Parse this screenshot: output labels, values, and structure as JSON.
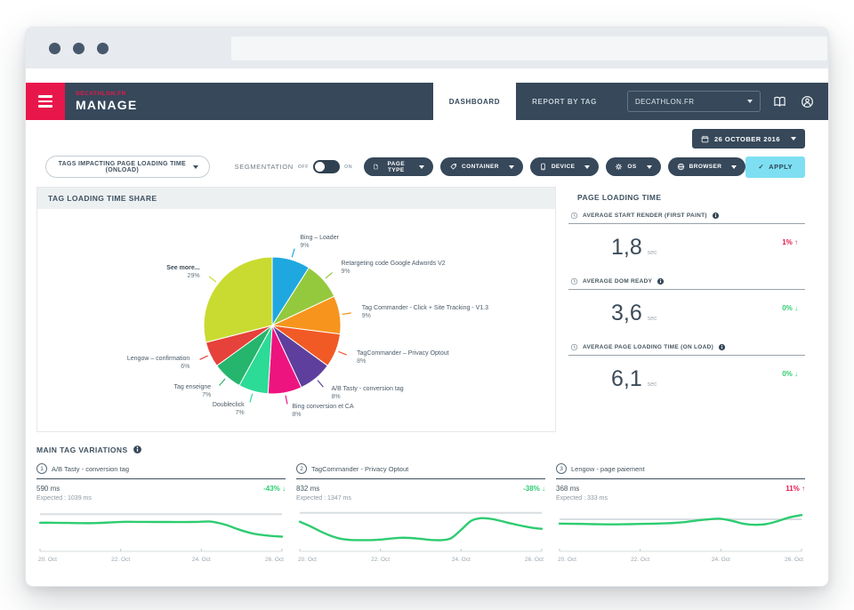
{
  "colors": {
    "navy": "#36485a",
    "accent_red": "#e8174b",
    "green": "#2ecc71",
    "apply_cyan": "#7fdff2"
  },
  "header": {
    "account": "DECATHLON.FR",
    "app_name": "MANAGE",
    "tabs": [
      {
        "label": "DASHBOARD"
      },
      {
        "label": "REPORT BY TAG"
      }
    ],
    "site_selector": "DECATHLON.FR"
  },
  "date_button": {
    "label": "26 OCTOBER 2016"
  },
  "filters": {
    "report_dropdown": "TAGS IMPACTING PAGE LOADING TIME (ONLOAD)",
    "segmentation_label": "SEGMENTATION",
    "toggle_off": "OFF",
    "toggle_on": "ON",
    "pills": [
      "PAGE TYPE",
      "CONTAINER",
      "DEVICE",
      "OS",
      "BROWSER"
    ],
    "apply_icon": "✓",
    "apply_label": "APPLY"
  },
  "pie_panel": {
    "title": "TAG LOADING TIME SHARE"
  },
  "metrics_panel": {
    "title": "PAGE LOADING TIME",
    "items": [
      {
        "label": "AVERAGE START RENDER (FIRST PAINT)",
        "value": "1,8",
        "unit": "sec",
        "delta": "1%",
        "arrow": "↑",
        "color": "#e8174b"
      },
      {
        "label": "AVERAGE DOM READY",
        "value": "3,6",
        "unit": "sec",
        "delta": "0%",
        "arrow": "↓",
        "color": "#2ecc71"
      },
      {
        "label": "AVERAGE PAGE LOADING TIME (ON LOAD)",
        "value": "6,1",
        "unit": "sec",
        "delta": "0%",
        "arrow": "↓",
        "color": "#2ecc71"
      }
    ]
  },
  "variations": {
    "title": "MAIN TAG VARIATIONS",
    "cards": [
      {
        "num": "1",
        "title": "A/B Tasty - conversion tag",
        "value": "590 ms",
        "expected": "Expected : 1039 ms",
        "delta": "-43%",
        "arrow": "↓",
        "color": "#2ecc71"
      },
      {
        "num": "2",
        "title": "TagCommander - Privacy Optout",
        "value": "832 ms",
        "expected": "Expected : 1347 ms",
        "delta": "-38%",
        "arrow": "↓",
        "color": "#2ecc71"
      },
      {
        "num": "3",
        "title": "Lengow - page paiement",
        "value": "368 ms",
        "expected": "Expected : 333 ms",
        "delta": "11%",
        "arrow": "↑",
        "color": "#e8174b"
      }
    ]
  },
  "chart_data": [
    {
      "type": "pie",
      "title": "TAG LOADING TIME SHARE",
      "slices": [
        {
          "label": "Bing – Loader",
          "value": 9,
          "color": "#1fa8e0"
        },
        {
          "label": "Retargeting code Google Adwords V2",
          "value": 9,
          "color": "#94c93d"
        },
        {
          "label": "Tag Commander - Click + Site Tracking - V1.3",
          "value": 9,
          "color": "#f7941d"
        },
        {
          "label": "TagCommander – Privacy Optout",
          "value": 8,
          "color": "#f15a24"
        },
        {
          "label": "A/B Tasty - conversion tag",
          "value": 8,
          "color": "#5e3f9e"
        },
        {
          "label": "Bing conversion et CA",
          "value": 8,
          "color": "#ed147f"
        },
        {
          "label": "Doubleclick",
          "value": 7,
          "color": "#2bdb96"
        },
        {
          "label": "Tag enseigne",
          "value": 7,
          "color": "#25b56d"
        },
        {
          "label": "Lengow – confirmation",
          "value": 6,
          "color": "#e6413a"
        },
        {
          "label": "See more...",
          "value": 29,
          "color": "#c9db30",
          "emphasis": true
        }
      ]
    },
    {
      "type": "line",
      "title": "A/B Tasty - conversion tag",
      "color": "#2ecc71",
      "expected": 1039,
      "current": 590,
      "ylim": [
        440,
        1150
      ],
      "x_ticks": [
        "20. Oct",
        "22. Oct",
        "24. Oct",
        "26. Oct"
      ],
      "values": [
        868,
        868,
        864,
        860,
        862,
        876,
        888,
        886,
        884,
        884,
        882,
        886,
        890,
        830,
        730,
        650,
        612,
        590
      ]
    },
    {
      "type": "line",
      "title": "TagCommander - Privacy Optout",
      "color": "#2ecc71",
      "expected": 1347,
      "current": 832,
      "ylim": [
        340,
        1480
      ],
      "x_ticks": [
        "20. Oct",
        "22. Oct",
        "24. Oct",
        "26. Oct"
      ],
      "values": [
        1060,
        920,
        760,
        620,
        520,
        478,
        470,
        472,
        488,
        520,
        545,
        540,
        510,
        478,
        470,
        530,
        800,
        1090,
        1175,
        1150,
        1080,
        1000,
        930,
        870,
        832
      ]
    },
    {
      "type": "line",
      "title": "Lengow - page paiement",
      "color": "#2ecc71",
      "expected": 333,
      "current": 368,
      "ylim": [
        130,
        420
      ],
      "x_ticks": [
        "20. Oct",
        "22. Oct",
        "24. Oct",
        "26. Oct"
      ],
      "values": [
        298,
        297,
        295,
        293,
        292,
        292,
        293,
        295,
        297,
        300,
        304,
        312,
        324,
        334,
        337,
        320,
        296,
        288,
        295,
        320,
        350,
        368
      ]
    }
  ]
}
